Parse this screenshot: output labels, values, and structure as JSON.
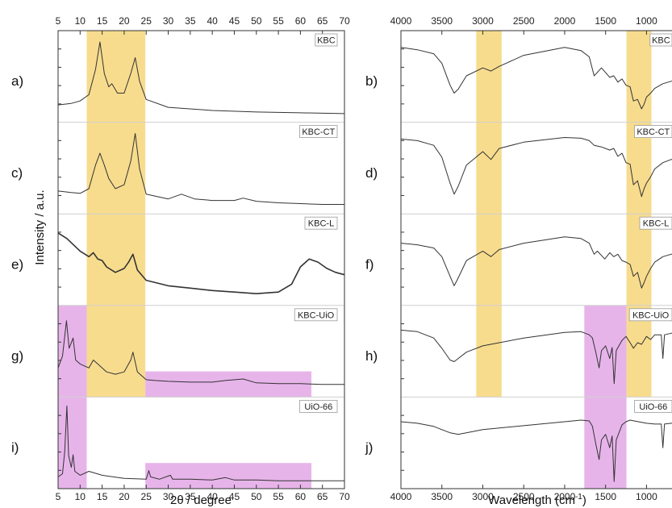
{
  "chart_data": [
    {
      "type": "line",
      "xlabel": "2θ / degree",
      "ylabel": "Intensity / a.u.",
      "xlim": [
        5,
        70
      ],
      "x_ticks": [
        "5",
        "10",
        "15",
        "20",
        "25",
        "30",
        "35",
        "40",
        "45",
        "50",
        "55",
        "60",
        "65",
        "70"
      ],
      "panel_letters": [
        "a)",
        "c)",
        "e)",
        "g)",
        "i)"
      ],
      "highlights": [
        {
          "color": "#f7dc8e",
          "x_range": [
            11.5,
            24.8
          ],
          "panels": [
            0,
            1,
            2,
            3
          ]
        },
        {
          "color": "#e7b4ea",
          "x_range": [
            5,
            11.5
          ],
          "panels": [
            3,
            4
          ]
        },
        {
          "color": "#e7b4ea",
          "x_range": [
            24.8,
            62.5
          ],
          "panels": [
            3,
            4
          ],
          "band": "low"
        }
      ],
      "series": [
        {
          "name": "KBC",
          "x": [
            5,
            8,
            10,
            12,
            13.5,
            14.5,
            15.5,
            16.5,
            17.2,
            18.5,
            20,
            21.5,
            22.5,
            23.5,
            25,
            30,
            40,
            50,
            60,
            70
          ],
          "y": [
            0.15,
            0.17,
            0.2,
            0.28,
            0.6,
            0.95,
            0.55,
            0.38,
            0.42,
            0.3,
            0.3,
            0.55,
            0.75,
            0.45,
            0.22,
            0.12,
            0.08,
            0.06,
            0.05,
            0.04
          ]
        },
        {
          "name": "KBC-CT",
          "x": [
            5,
            8,
            10,
            12,
            13.5,
            14.5,
            15.5,
            16.5,
            18,
            20,
            21.5,
            22.5,
            23.5,
            25,
            30,
            33,
            36,
            40,
            45,
            47,
            50,
            55,
            60,
            65,
            70
          ],
          "y": [
            0.22,
            0.2,
            0.19,
            0.25,
            0.55,
            0.7,
            0.55,
            0.38,
            0.25,
            0.3,
            0.6,
            0.95,
            0.5,
            0.18,
            0.12,
            0.18,
            0.12,
            0.1,
            0.1,
            0.13,
            0.09,
            0.07,
            0.06,
            0.05,
            0.05
          ]
        },
        {
          "name": "KBC-L",
          "x": [
            5,
            7,
            10,
            12,
            13,
            14,
            15,
            16,
            18,
            20,
            21,
            22,
            23,
            25,
            30,
            35,
            40,
            45,
            50,
            55,
            58,
            60,
            62,
            64,
            66,
            68,
            70
          ],
          "y": [
            0.85,
            0.78,
            0.62,
            0.55,
            0.6,
            0.52,
            0.5,
            0.42,
            0.35,
            0.4,
            0.48,
            0.58,
            0.38,
            0.25,
            0.18,
            0.15,
            0.12,
            0.1,
            0.08,
            0.1,
            0.2,
            0.42,
            0.52,
            0.48,
            0.4,
            0.35,
            0.32
          ]
        },
        {
          "name": "KBC-UiO",
          "x": [
            5,
            6,
            6.9,
            7.5,
            8.4,
            9,
            10,
            12,
            13,
            14,
            15,
            16,
            18,
            20,
            21.5,
            22,
            23,
            25,
            27,
            30,
            35,
            40,
            43,
            47,
            50,
            55,
            60,
            65,
            70
          ],
          "y": [
            0.3,
            0.45,
            0.9,
            0.55,
            0.68,
            0.4,
            0.35,
            0.3,
            0.4,
            0.35,
            0.3,
            0.25,
            0.22,
            0.25,
            0.4,
            0.5,
            0.25,
            0.15,
            0.14,
            0.13,
            0.12,
            0.12,
            0.14,
            0.16,
            0.11,
            0.1,
            0.1,
            0.09,
            0.09
          ]
        },
        {
          "name": "UiO-66",
          "x": [
            5,
            6,
            6.5,
            7.0,
            7.4,
            8.0,
            8.4,
            8.8,
            10,
            12,
            15,
            20,
            25,
            25.6,
            26,
            28,
            30.5,
            31,
            35,
            40,
            43,
            45,
            50,
            55,
            60,
            65,
            70
          ],
          "y": [
            0.08,
            0.12,
            0.4,
            0.98,
            0.35,
            0.2,
            0.36,
            0.15,
            0.1,
            0.15,
            0.1,
            0.06,
            0.05,
            0.16,
            0.08,
            0.05,
            0.1,
            0.05,
            0.05,
            0.04,
            0.07,
            0.04,
            0.04,
            0.03,
            0.03,
            0.03,
            0.03
          ]
        }
      ]
    },
    {
      "type": "line",
      "xlabel": "Wavelength (cm",
      "xlabel_sup": "-1",
      "xlabel_close": ")",
      "xlim": [
        4000,
        600
      ],
      "x_ticks": [
        "4000",
        "3500",
        "3000",
        "2500",
        "2000",
        "1500",
        "1000"
      ],
      "panel_letters": [
        "b)",
        "d)",
        "f)",
        "h)",
        "j)"
      ],
      "highlights": [
        {
          "color": "#f7dc8e",
          "x_range": [
            3080,
            2770
          ],
          "panels": [
            0,
            1,
            2,
            3
          ]
        },
        {
          "color": "#f7dc8e",
          "x_range": [
            1245,
            940
          ],
          "panels": [
            0,
            1,
            2,
            3
          ]
        },
        {
          "color": "#e7b4ea",
          "x_range": [
            1760,
            1245
          ],
          "panels": [
            3,
            4
          ]
        }
      ],
      "series": [
        {
          "name": "KBC",
          "x": [
            4000,
            3800,
            3600,
            3500,
            3400,
            3350,
            3300,
            3200,
            3000,
            2900,
            2800,
            2500,
            2000,
            1800,
            1700,
            1640,
            1550,
            1450,
            1400,
            1350,
            1300,
            1250,
            1200,
            1160,
            1110,
            1060,
            1030,
            1000,
            950,
            900,
            800,
            700,
            600
          ],
          "y": [
            0.88,
            0.85,
            0.8,
            0.68,
            0.4,
            0.3,
            0.35,
            0.52,
            0.62,
            0.58,
            0.64,
            0.78,
            0.88,
            0.84,
            0.76,
            0.52,
            0.62,
            0.5,
            0.52,
            0.44,
            0.48,
            0.4,
            0.38,
            0.2,
            0.22,
            0.1,
            0.16,
            0.25,
            0.3,
            0.36,
            0.42,
            0.45,
            0.45
          ]
        },
        {
          "name": "KBC-CT",
          "x": [
            4000,
            3800,
            3600,
            3500,
            3400,
            3350,
            3300,
            3200,
            3000,
            2900,
            2800,
            2500,
            2000,
            1800,
            1700,
            1640,
            1550,
            1450,
            1400,
            1350,
            1300,
            1250,
            1200,
            1160,
            1110,
            1060,
            1030,
            1000,
            950,
            900,
            800,
            700,
            600
          ],
          "y": [
            0.88,
            0.86,
            0.8,
            0.65,
            0.32,
            0.18,
            0.28,
            0.55,
            0.72,
            0.62,
            0.76,
            0.84,
            0.9,
            0.89,
            0.86,
            0.8,
            0.78,
            0.74,
            0.76,
            0.66,
            0.7,
            0.58,
            0.56,
            0.3,
            0.35,
            0.15,
            0.25,
            0.32,
            0.4,
            0.5,
            0.58,
            0.62,
            0.62
          ]
        },
        {
          "name": "KBC-L",
          "x": [
            4000,
            3800,
            3600,
            3500,
            3400,
            3350,
            3300,
            3200,
            3000,
            2900,
            2800,
            2500,
            2000,
            1800,
            1700,
            1640,
            1600,
            1510,
            1450,
            1400,
            1350,
            1300,
            1250,
            1200,
            1160,
            1110,
            1060,
            1030,
            1000,
            950,
            900,
            800,
            700,
            600
          ],
          "y": [
            0.72,
            0.7,
            0.66,
            0.55,
            0.3,
            0.18,
            0.28,
            0.5,
            0.62,
            0.55,
            0.64,
            0.72,
            0.8,
            0.78,
            0.72,
            0.58,
            0.62,
            0.52,
            0.6,
            0.55,
            0.58,
            0.5,
            0.48,
            0.45,
            0.3,
            0.35,
            0.15,
            0.22,
            0.3,
            0.4,
            0.48,
            0.55,
            0.58,
            0.58
          ]
        },
        {
          "name": "KBC-UiO",
          "x": [
            4000,
            3800,
            3600,
            3500,
            3400,
            3350,
            3300,
            3200,
            3000,
            2500,
            2000,
            1800,
            1700,
            1660,
            1620,
            1580,
            1550,
            1500,
            1450,
            1420,
            1395,
            1370,
            1300,
            1250,
            1200,
            1160,
            1110,
            1060,
            1000,
            950,
            900,
            820,
            800,
            780,
            700,
            600
          ],
          "y": [
            0.78,
            0.76,
            0.68,
            0.55,
            0.4,
            0.38,
            0.42,
            0.5,
            0.58,
            0.68,
            0.75,
            0.76,
            0.72,
            0.68,
            0.5,
            0.3,
            0.52,
            0.58,
            0.42,
            0.56,
            0.1,
            0.52,
            0.65,
            0.7,
            0.62,
            0.55,
            0.62,
            0.6,
            0.7,
            0.66,
            0.72,
            0.72,
            0.42,
            0.72,
            0.74,
            0.74
          ]
        },
        {
          "name": "UiO-66",
          "x": [
            4000,
            3800,
            3600,
            3500,
            3400,
            3300,
            3200,
            3000,
            2500,
            2000,
            1800,
            1700,
            1660,
            1620,
            1580,
            1550,
            1500,
            1450,
            1420,
            1395,
            1370,
            1300,
            1250,
            1200,
            1100,
            1000,
            900,
            820,
            800,
            780,
            700,
            600
          ],
          "y": [
            0.78,
            0.76,
            0.72,
            0.68,
            0.64,
            0.62,
            0.64,
            0.68,
            0.73,
            0.78,
            0.8,
            0.79,
            0.72,
            0.5,
            0.3,
            0.55,
            0.62,
            0.45,
            0.6,
            0.02,
            0.55,
            0.74,
            0.78,
            0.8,
            0.78,
            0.76,
            0.75,
            0.75,
            0.45,
            0.75,
            0.76,
            0.76
          ]
        }
      ]
    }
  ]
}
